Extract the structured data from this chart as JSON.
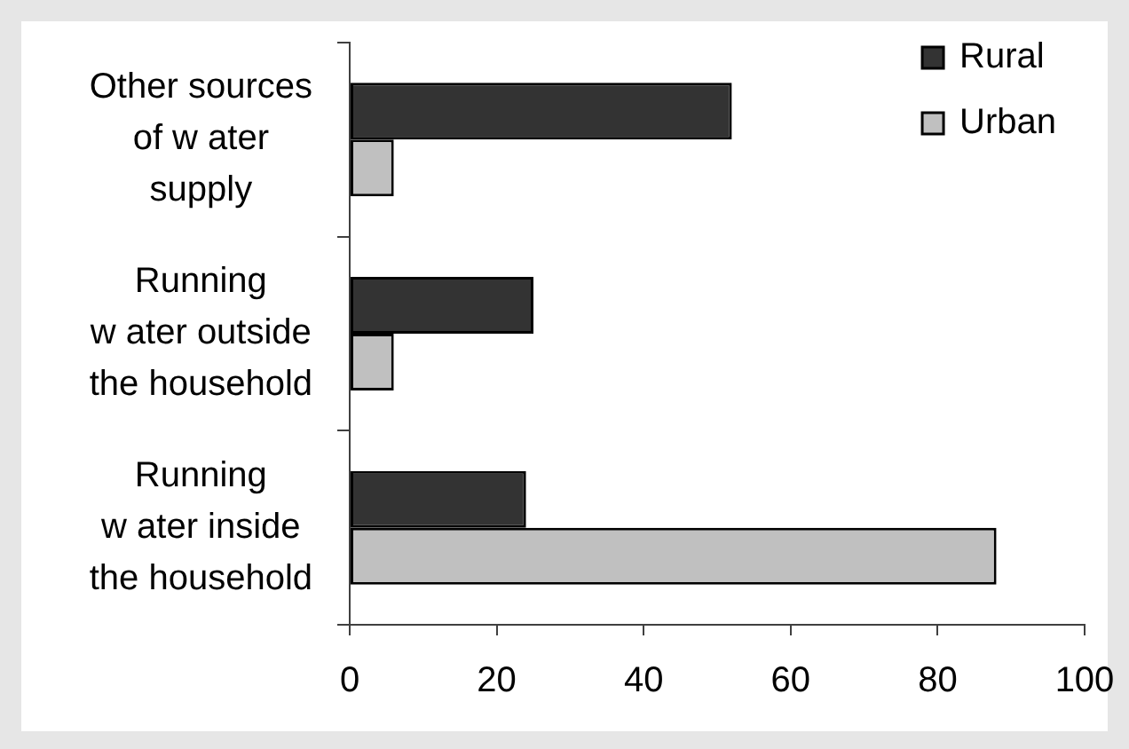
{
  "chart_data": {
    "type": "bar",
    "orientation": "horizontal",
    "categories": [
      "Other sources of w ater supply",
      "Running w ater outside the household",
      "Running w ater inside the household"
    ],
    "series": [
      {
        "name": "Rural",
        "color": "#333333",
        "values": [
          52,
          25,
          24
        ]
      },
      {
        "name": "Urban",
        "color": "#c0c0c0",
        "values": [
          6,
          6,
          88
        ]
      }
    ],
    "xlim": [
      0,
      100
    ],
    "xticks": [
      0,
      20,
      40,
      60,
      80,
      100
    ],
    "legend": "top right"
  }
}
